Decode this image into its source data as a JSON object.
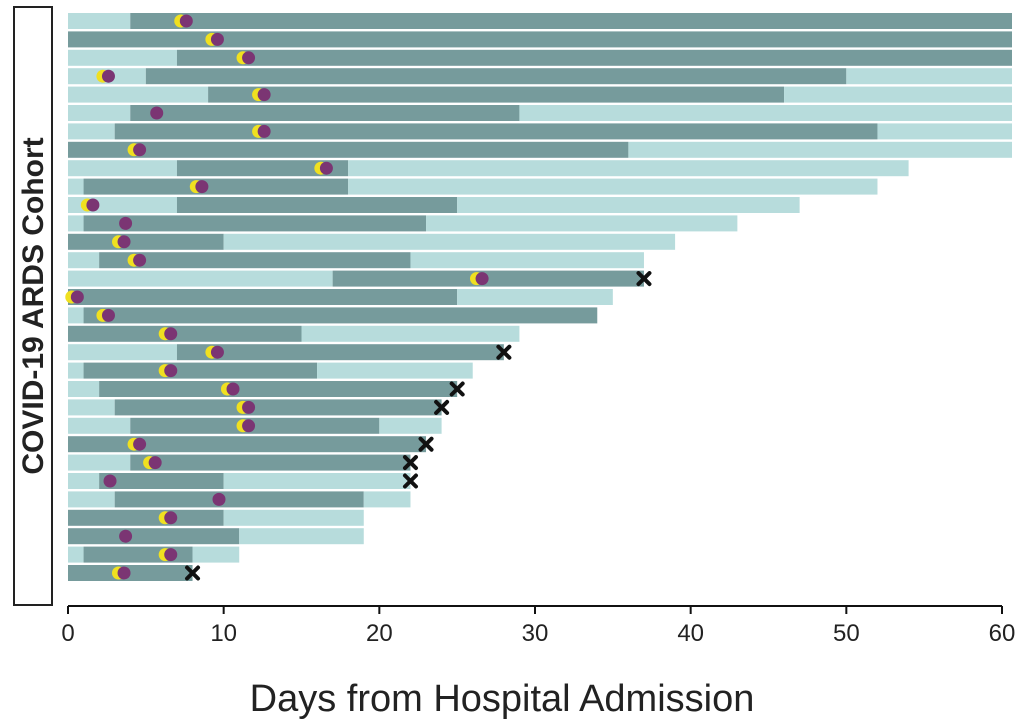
{
  "chart_data": {
    "type": "bar",
    "subtype": "swimmer-plot",
    "title": "",
    "xlabel": "Days from Hospital Admission",
    "ylabel": "COVID-19 ARDS Cohort",
    "xlim": [
      0,
      60
    ],
    "xticks": [
      0,
      10,
      20,
      30,
      40,
      50,
      60
    ],
    "grid": false,
    "colors": {
      "light_segment": "#b7dcdc",
      "dark_segment": "#769b9c",
      "onset_marker": "#f0e020",
      "event_marker": "#7b3573",
      "death_marker": "#111111"
    },
    "patients": [
      {
        "segments": [
          [
            0,
            4,
            "light"
          ],
          [
            4,
            61,
            "dark"
          ]
        ],
        "onset": 7.5,
        "event": 7.6,
        "death": null
      },
      {
        "segments": [
          [
            0,
            61,
            "dark"
          ]
        ],
        "onset": 9.5,
        "event": 9.6,
        "death": null
      },
      {
        "segments": [
          [
            0,
            7,
            "light"
          ],
          [
            7,
            61,
            "dark"
          ]
        ],
        "onset": 11.5,
        "event": 11.6,
        "death": null
      },
      {
        "segments": [
          [
            0,
            5,
            "light"
          ],
          [
            5,
            50,
            "dark"
          ],
          [
            50,
            61,
            "light"
          ]
        ],
        "onset": 2.5,
        "event": 2.6,
        "death": null
      },
      {
        "segments": [
          [
            0,
            9,
            "light"
          ],
          [
            9,
            46,
            "dark"
          ],
          [
            46,
            61,
            "light"
          ]
        ],
        "onset": 12.5,
        "event": 12.6,
        "death": null
      },
      {
        "segments": [
          [
            0,
            4,
            "light"
          ],
          [
            4,
            29,
            "dark"
          ],
          [
            29,
            61,
            "light"
          ]
        ],
        "onset": null,
        "event": 5.7,
        "death": null
      },
      {
        "segments": [
          [
            0,
            3,
            "light"
          ],
          [
            3,
            52,
            "dark"
          ],
          [
            52,
            61,
            "light"
          ]
        ],
        "onset": 12.5,
        "event": 12.6,
        "death": null
      },
      {
        "segments": [
          [
            0,
            36,
            "dark"
          ],
          [
            36,
            61,
            "light"
          ]
        ],
        "onset": 4.5,
        "event": 4.6,
        "death": null
      },
      {
        "segments": [
          [
            0,
            7,
            "light"
          ],
          [
            7,
            18,
            "dark"
          ],
          [
            18,
            54,
            "light"
          ]
        ],
        "onset": 16.5,
        "event": 16.6,
        "death": null
      },
      {
        "segments": [
          [
            0,
            1,
            "light"
          ],
          [
            1,
            18,
            "dark"
          ],
          [
            18,
            52,
            "light"
          ]
        ],
        "onset": 8.5,
        "event": 8.6,
        "death": null
      },
      {
        "segments": [
          [
            0,
            7,
            "light"
          ],
          [
            7,
            25,
            "dark"
          ],
          [
            25,
            47,
            "light"
          ]
        ],
        "onset": 1.5,
        "event": 1.6,
        "death": null
      },
      {
        "segments": [
          [
            0,
            1,
            "light"
          ],
          [
            1,
            23,
            "dark"
          ],
          [
            23,
            43,
            "light"
          ]
        ],
        "onset": null,
        "event": 3.7,
        "death": null
      },
      {
        "segments": [
          [
            0,
            10,
            "dark"
          ],
          [
            10,
            39,
            "light"
          ]
        ],
        "onset": 3.5,
        "event": 3.6,
        "death": null
      },
      {
        "segments": [
          [
            0,
            2,
            "light"
          ],
          [
            2,
            22,
            "dark"
          ],
          [
            22,
            37,
            "light"
          ]
        ],
        "onset": 4.5,
        "event": 4.6,
        "death": null
      },
      {
        "segments": [
          [
            0,
            17,
            "light"
          ],
          [
            17,
            37,
            "dark"
          ]
        ],
        "onset": 26.5,
        "event": 26.6,
        "death": 37
      },
      {
        "segments": [
          [
            0,
            25,
            "dark"
          ],
          [
            25,
            35,
            "light"
          ]
        ],
        "onset": 0.5,
        "event": 0.6,
        "death": null
      },
      {
        "segments": [
          [
            0,
            1,
            "light"
          ],
          [
            1,
            34,
            "dark"
          ]
        ],
        "onset": 2.5,
        "event": 2.6,
        "death": null
      },
      {
        "segments": [
          [
            0,
            15,
            "dark"
          ],
          [
            15,
            29,
            "light"
          ]
        ],
        "onset": 6.5,
        "event": 6.6,
        "death": null
      },
      {
        "segments": [
          [
            0,
            7,
            "light"
          ],
          [
            7,
            28,
            "dark"
          ]
        ],
        "onset": 9.5,
        "event": 9.6,
        "death": 28
      },
      {
        "segments": [
          [
            0,
            1,
            "light"
          ],
          [
            1,
            16,
            "dark"
          ],
          [
            16,
            26,
            "light"
          ]
        ],
        "onset": 6.5,
        "event": 6.6,
        "death": null
      },
      {
        "segments": [
          [
            0,
            2,
            "light"
          ],
          [
            2,
            25,
            "dark"
          ]
        ],
        "onset": 10.5,
        "event": 10.6,
        "death": 25
      },
      {
        "segments": [
          [
            0,
            3,
            "light"
          ],
          [
            3,
            24,
            "dark"
          ]
        ],
        "onset": 11.5,
        "event": 11.6,
        "death": 24
      },
      {
        "segments": [
          [
            0,
            4,
            "light"
          ],
          [
            4,
            20,
            "dark"
          ],
          [
            20,
            24,
            "light"
          ]
        ],
        "onset": 11.5,
        "event": 11.6,
        "death": null
      },
      {
        "segments": [
          [
            0,
            23,
            "dark"
          ]
        ],
        "onset": 4.5,
        "event": 4.6,
        "death": 23
      },
      {
        "segments": [
          [
            0,
            4,
            "light"
          ],
          [
            4,
            22,
            "dark"
          ]
        ],
        "onset": 5.5,
        "event": 5.6,
        "death": 22
      },
      {
        "segments": [
          [
            0,
            2,
            "light"
          ],
          [
            2,
            10,
            "dark"
          ],
          [
            10,
            22,
            "light"
          ]
        ],
        "onset": null,
        "event": 2.7,
        "death": 22
      },
      {
        "segments": [
          [
            0,
            3,
            "light"
          ],
          [
            3,
            19,
            "dark"
          ],
          [
            19,
            22,
            "light"
          ]
        ],
        "onset": null,
        "event": 9.7,
        "death": null
      },
      {
        "segments": [
          [
            0,
            10,
            "dark"
          ],
          [
            10,
            19,
            "light"
          ]
        ],
        "onset": 6.5,
        "event": 6.6,
        "death": null
      },
      {
        "segments": [
          [
            0,
            11,
            "dark"
          ],
          [
            11,
            19,
            "light"
          ]
        ],
        "onset": null,
        "event": 3.7,
        "death": null
      },
      {
        "segments": [
          [
            0,
            1,
            "light"
          ],
          [
            1,
            8,
            "dark"
          ],
          [
            8,
            11,
            "light"
          ]
        ],
        "onset": 6.5,
        "event": 6.6,
        "death": null
      },
      {
        "segments": [
          [
            0,
            8,
            "dark"
          ]
        ],
        "onset": 3.5,
        "event": 3.6,
        "death": 8
      }
    ]
  }
}
